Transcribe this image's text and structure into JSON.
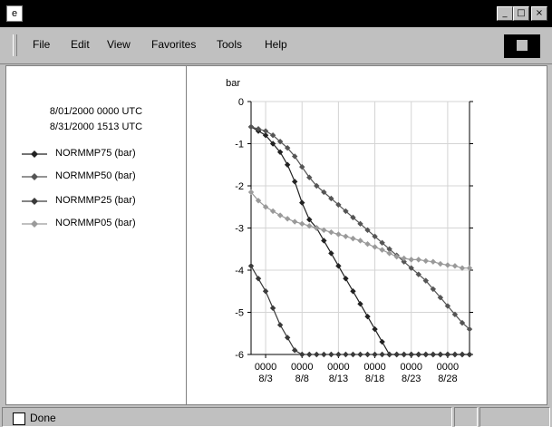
{
  "menu": [
    "File",
    "Edit",
    "View",
    "Favorites",
    "Tools",
    "Help"
  ],
  "window_buttons": {
    "minimize": "_",
    "maximize": "□",
    "close": "×"
  },
  "legend": {
    "times": [
      "8/01/2000 0000 UTC",
      "8/31/2000 1513 UTC"
    ],
    "items": [
      {
        "label": "NORMMP75 (bar)",
        "color": "#222222"
      },
      {
        "label": "NORMMP50 (bar)",
        "color": "#555555"
      },
      {
        "label": "NORMMP25 (bar)",
        "color": "#3a3a3a"
      },
      {
        "label": "NORMMP05 (bar)",
        "color": "#9a9a9a"
      }
    ]
  },
  "status": {
    "text": "Done"
  },
  "chart_data": {
    "type": "line",
    "ylabel": "bar",
    "ylim": [
      -6,
      0
    ],
    "yticks": [
      0,
      -1,
      -2,
      -3,
      -4,
      -5,
      -6
    ],
    "xlim": [
      1,
      31
    ],
    "xticks": [
      3,
      8,
      13,
      18,
      23,
      28
    ],
    "xtick_labels": [
      [
        "0000",
        "8/3"
      ],
      [
        "0000",
        "8/8"
      ],
      [
        "0000",
        "8/13"
      ],
      [
        "0000",
        "8/18"
      ],
      [
        "0000",
        "8/23"
      ],
      [
        "0000",
        "8/28"
      ]
    ],
    "grid": true,
    "series": [
      {
        "name": "NORMMP75 (bar)",
        "color": "#222222",
        "x": [
          1,
          2,
          3,
          4,
          5,
          6,
          7,
          8,
          9,
          10,
          11,
          12,
          13,
          14,
          15,
          16,
          17,
          18,
          19,
          20,
          21,
          22,
          23,
          24,
          25,
          26,
          27,
          28,
          29,
          30,
          31
        ],
        "y": [
          -0.6,
          -0.7,
          -0.8,
          -1.0,
          -1.2,
          -1.5,
          -1.9,
          -2.4,
          -2.8,
          -3.0,
          -3.3,
          -3.6,
          -3.9,
          -4.2,
          -4.5,
          -4.8,
          -5.1,
          -5.4,
          -5.7,
          -6.0,
          -6.0,
          -6.0,
          -6.0,
          -6.0,
          -6.0,
          -6.0,
          -6.0,
          -6.0,
          -6.0,
          -6.0,
          -6.0
        ]
      },
      {
        "name": "NORMMP50 (bar)",
        "color": "#555555",
        "x": [
          1,
          2,
          3,
          4,
          5,
          6,
          7,
          8,
          9,
          10,
          11,
          12,
          13,
          14,
          15,
          16,
          17,
          18,
          19,
          20,
          21,
          22,
          23,
          24,
          25,
          26,
          27,
          28,
          29,
          30,
          31
        ],
        "y": [
          -0.6,
          -0.65,
          -0.7,
          -0.8,
          -0.95,
          -1.1,
          -1.3,
          -1.55,
          -1.8,
          -2.0,
          -2.15,
          -2.3,
          -2.45,
          -2.6,
          -2.75,
          -2.9,
          -3.05,
          -3.2,
          -3.35,
          -3.5,
          -3.65,
          -3.8,
          -3.95,
          -4.1,
          -4.25,
          -4.45,
          -4.65,
          -4.85,
          -5.05,
          -5.25,
          -5.4
        ]
      },
      {
        "name": "NORMMP25 (bar)",
        "color": "#3a3a3a",
        "x": [
          1,
          2,
          3,
          4,
          5,
          6,
          7,
          8,
          9,
          10,
          11,
          12,
          13,
          14,
          15,
          16,
          17,
          18,
          19,
          20,
          21,
          22,
          23,
          24,
          25,
          26,
          27,
          28,
          29,
          30,
          31
        ],
        "y": [
          -3.9,
          -4.2,
          -4.5,
          -4.9,
          -5.3,
          -5.6,
          -5.9,
          -6.0,
          -6.0,
          -6.0,
          -6.0,
          -6.0,
          -6.0,
          -6.0,
          -6.0,
          -6.0,
          -6.0,
          -6.0,
          -6.0,
          -6.0,
          -6.0,
          -6.0,
          -6.0,
          -6.0,
          -6.0,
          -6.0,
          -6.0,
          -6.0,
          -6.0,
          -6.0,
          -6.0
        ]
      },
      {
        "name": "NORMMP05 (bar)",
        "color": "#9a9a9a",
        "x": [
          1,
          2,
          3,
          4,
          5,
          6,
          7,
          8,
          9,
          10,
          11,
          12,
          13,
          14,
          15,
          16,
          17,
          18,
          19,
          20,
          21,
          22,
          23,
          24,
          25,
          26,
          27,
          28,
          29,
          30,
          31
        ],
        "y": [
          -2.15,
          -2.35,
          -2.5,
          -2.6,
          -2.7,
          -2.78,
          -2.85,
          -2.9,
          -2.95,
          -3.0,
          -3.05,
          -3.1,
          -3.15,
          -3.2,
          -3.25,
          -3.3,
          -3.38,
          -3.45,
          -3.52,
          -3.6,
          -3.68,
          -3.72,
          -3.75,
          -3.75,
          -3.78,
          -3.8,
          -3.85,
          -3.88,
          -3.9,
          -3.95,
          -3.95
        ]
      }
    ]
  }
}
